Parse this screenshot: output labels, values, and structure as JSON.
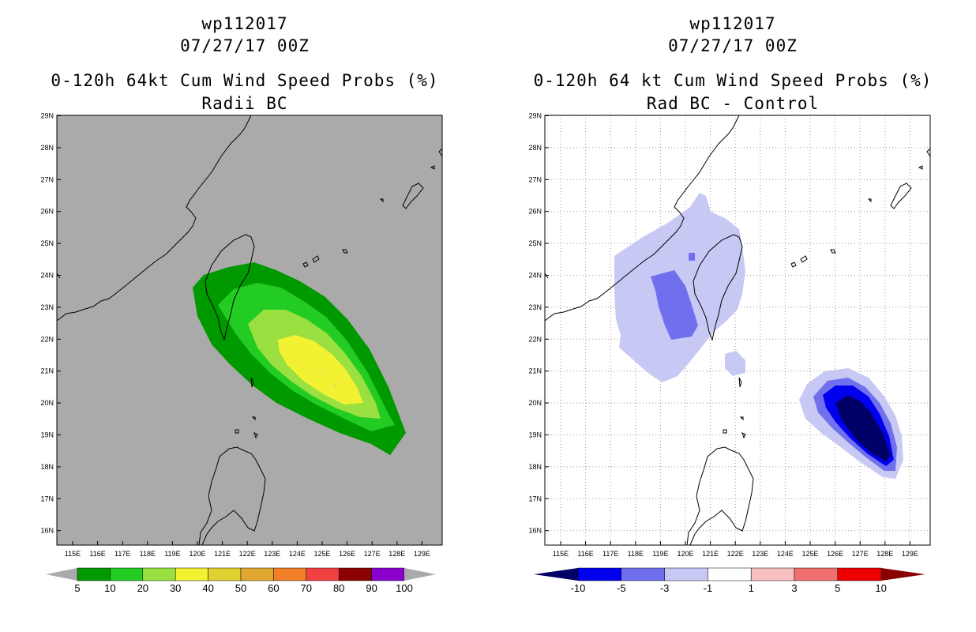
{
  "left": {
    "title_line1": "wp112017",
    "title_line2": "07/27/17 00Z",
    "title_line3": "0-120h 64kt Cum Wind Speed Probs (%)",
    "title_line4": "Radii BC",
    "background_color": "#aaaaaa",
    "colorbar_labels": [
      "5",
      "10",
      "20",
      "30",
      "40",
      "50",
      "60",
      "70",
      "80",
      "90",
      "100"
    ],
    "colorbar_colors": [
      "#009900",
      "#22cc22",
      "#99e040",
      "#f2f232",
      "#e0d030",
      "#e0a830",
      "#f07f28",
      "#f04040",
      "#8b0000",
      "#8a00cc"
    ],
    "contour_fills": [
      "#009900",
      "#22cc22",
      "#99e040",
      "#f2f232"
    ]
  },
  "right": {
    "title_line1": "wp112017",
    "title_line2": "07/27/17 00Z",
    "title_line3": "0-120h 64 kt Cum Wind Speed Probs (%)",
    "title_line4": "Rad BC - Control",
    "background_color": "#ffffff",
    "colorbar_labels": [
      "-10",
      "-5",
      "-3",
      "-1",
      "1",
      "3",
      "5",
      "10"
    ],
    "colorbar_colors": [
      "#000066",
      "#0000ee",
      "#7070ee",
      "#c8c8f4",
      "#ffffff",
      "#f8c0c0",
      "#f07070",
      "#ee0000",
      "#880000"
    ]
  },
  "axes": {
    "lat_labels": [
      "29N",
      "28N",
      "27N",
      "26N",
      "25N",
      "24N",
      "23N",
      "22N",
      "21N",
      "20N",
      "19N",
      "18N",
      "17N",
      "16N"
    ],
    "lon_labels": [
      "115E",
      "116E",
      "117E",
      "118E",
      "119E",
      "120E",
      "121E",
      "122E",
      "123E",
      "124E",
      "125E",
      "126E",
      "127E",
      "128E",
      "129E"
    ]
  }
}
